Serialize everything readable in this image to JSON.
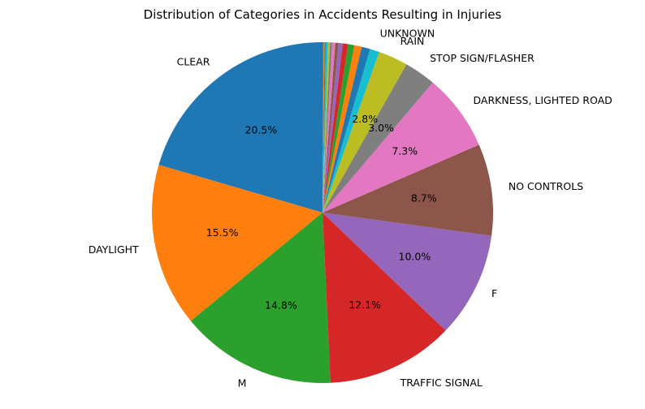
{
  "chart_data": {
    "type": "pie",
    "title": "Distribution of Categories in Accidents Resulting in Injuries",
    "start_angle_deg": 90,
    "direction": "counterclockwise",
    "slices": [
      {
        "label": "CLEAR",
        "value": 20.5,
        "pct_label": "20.5%",
        "color": "#1f77b4"
      },
      {
        "label": "DAYLIGHT",
        "value": 15.5,
        "pct_label": "15.5%",
        "color": "#ff7f0e"
      },
      {
        "label": "M",
        "value": 14.8,
        "pct_label": "14.8%",
        "color": "#2ca02c"
      },
      {
        "label": "TRAFFIC SIGNAL",
        "value": 12.1,
        "pct_label": "12.1%",
        "color": "#d62728"
      },
      {
        "label": "F",
        "value": 10.0,
        "pct_label": "10.0%",
        "color": "#9467bd"
      },
      {
        "label": "NO CONTROLS",
        "value": 8.7,
        "pct_label": "8.7%",
        "color": "#8c564b"
      },
      {
        "label": "DARKNESS, LIGHTED ROAD",
        "value": 7.3,
        "pct_label": "7.3%",
        "color": "#e377c2"
      },
      {
        "label": "STOP SIGN/FLASHER",
        "value": 3.0,
        "pct_label": "3.0%",
        "color": "#7f7f7f"
      },
      {
        "label": "RAIN",
        "value": 2.8,
        "pct_label": "2.8%",
        "color": "#bcbd22"
      },
      {
        "label": "UNKNOWN",
        "value": 0.9,
        "pct_label": "",
        "color": "#17becf"
      },
      {
        "label": "",
        "value": 0.8,
        "pct_label": "",
        "color": "#1f77b4"
      },
      {
        "label": "",
        "value": 0.7,
        "pct_label": "",
        "color": "#ff7f0e"
      },
      {
        "label": "",
        "value": 0.6,
        "pct_label": "",
        "color": "#2ca02c"
      },
      {
        "label": "",
        "value": 0.5,
        "pct_label": "",
        "color": "#d62728"
      },
      {
        "label": "",
        "value": 0.4,
        "pct_label": "",
        "color": "#9467bd"
      },
      {
        "label": "",
        "value": 0.3,
        "pct_label": "",
        "color": "#8c564b"
      },
      {
        "label": "",
        "value": 0.3,
        "pct_label": "",
        "color": "#e377c2"
      },
      {
        "label": "",
        "value": 0.2,
        "pct_label": "",
        "color": "#7f7f7f"
      },
      {
        "label": "",
        "value": 0.2,
        "pct_label": "",
        "color": "#bcbd22"
      },
      {
        "label": "",
        "value": 0.2,
        "pct_label": "",
        "color": "#17becf"
      },
      {
        "label": "",
        "value": 0.1,
        "pct_label": "",
        "color": "#1f77b4"
      },
      {
        "label": "",
        "value": 0.1,
        "pct_label": "",
        "color": "#ff7f0e"
      },
      {
        "label": "",
        "value": 0.1,
        "pct_label": "",
        "color": "#2ca02c"
      }
    ]
  }
}
